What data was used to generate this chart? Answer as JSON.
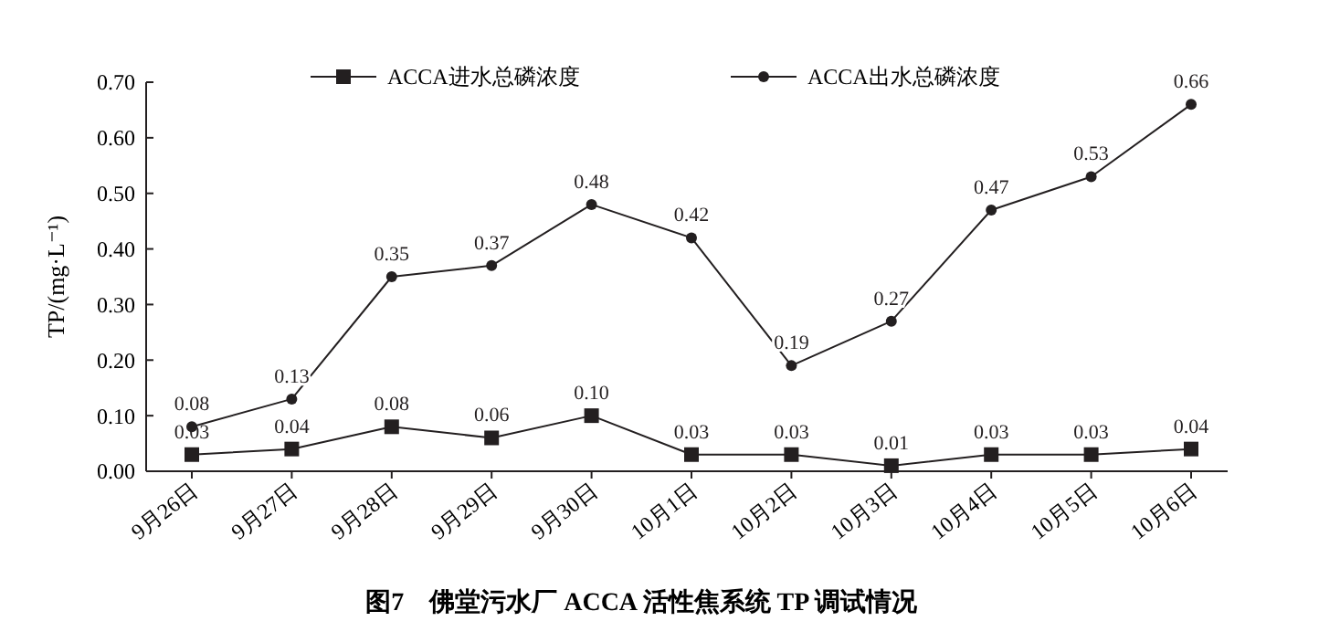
{
  "chart_data": {
    "type": "line",
    "title": "图7　佛堂污水厂 ACCA 活性焦系统 TP 调试情况",
    "ylabel": "TP/(mg·L⁻¹)",
    "categories": [
      "9月26日",
      "9月27日",
      "9月28日",
      "9月29日",
      "9月30日",
      "10月1日",
      "10月2日",
      "10月3日",
      "10月4日",
      "10月5日",
      "10月6日"
    ],
    "series": [
      {
        "name": "ACCA进水总磷浓度",
        "color": "#231f20",
        "marker": "square",
        "values": [
          0.03,
          0.04,
          0.08,
          0.06,
          0.1,
          0.03,
          0.03,
          0.01,
          0.03,
          0.03,
          0.04
        ],
        "value_labels": [
          "0.03",
          "0.04",
          "0.08",
          "0.06",
          "0.10",
          "0.03",
          "0.03",
          "0.01",
          "0.03",
          "0.03",
          "0.04"
        ]
      },
      {
        "name": "ACCA出水总磷浓度",
        "color": "#231f20",
        "marker": "circle",
        "values": [
          0.08,
          0.13,
          0.35,
          0.37,
          0.48,
          0.42,
          0.19,
          0.27,
          0.47,
          0.53,
          0.66
        ],
        "value_labels": [
          "0.08",
          "0.13",
          "0.35",
          "0.37",
          "0.48",
          "0.42",
          "0.19",
          "0.27",
          "0.47",
          "0.53",
          "0.66"
        ]
      }
    ],
    "ylim": [
      0,
      0.7
    ],
    "yticks": [
      "0.00",
      "0.10",
      "0.20",
      "0.30",
      "0.40",
      "0.50",
      "0.60",
      "0.70"
    ],
    "legend": "top",
    "grid": false,
    "line_style": "solid"
  }
}
